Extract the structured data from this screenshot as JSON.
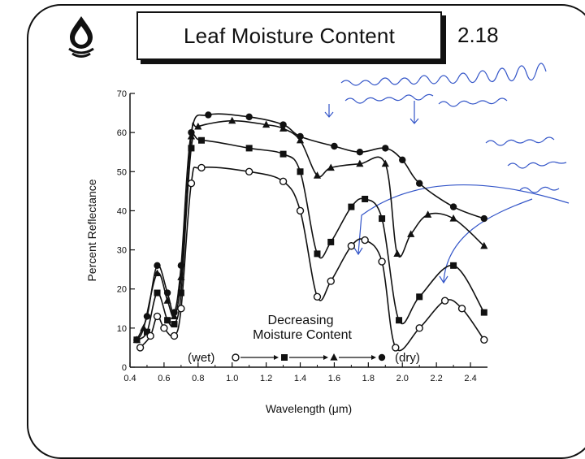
{
  "slide": {
    "title": "Leaf Moisture Content",
    "number": "2.18"
  },
  "colors": {
    "ink": "#111111",
    "handwriting": "#3355c8",
    "background": "#ffffff"
  },
  "icon": "water-drop-icon",
  "chart_data": {
    "type": "line",
    "title": "",
    "xlabel": "Wavelength (μm)",
    "ylabel": "Percent Reflectance",
    "xlim": [
      0.4,
      2.5
    ],
    "ylim": [
      0,
      70
    ],
    "x_ticks": [
      "0.4",
      "0.6",
      "0.8",
      "1.0",
      "1.2",
      "1.4",
      "1.6",
      "1.8",
      "2.0",
      "2.2",
      "2.4"
    ],
    "y_ticks": [
      "0",
      "10",
      "20",
      "30",
      "40",
      "50",
      "60",
      "70"
    ],
    "grid": false,
    "annotation": [
      "Decreasing",
      "Moisture Content"
    ],
    "legend": {
      "wet_label": "(wet)",
      "dry_label": "(dry)",
      "order": [
        "open-circle",
        "square",
        "triangle",
        "filled-circle"
      ]
    },
    "series": [
      {
        "marker": "filled-circle",
        "points": [
          [
            0.44,
            7
          ],
          [
            0.5,
            13
          ],
          [
            0.56,
            26
          ],
          [
            0.62,
            19
          ],
          [
            0.66,
            14
          ],
          [
            0.7,
            26
          ],
          [
            0.76,
            60
          ],
          [
            0.86,
            64.5
          ],
          [
            1.1,
            64
          ],
          [
            1.3,
            62
          ],
          [
            1.4,
            59
          ],
          [
            1.6,
            56.5
          ],
          [
            1.75,
            55
          ],
          [
            1.9,
            56
          ],
          [
            2.0,
            53
          ],
          [
            2.1,
            47
          ],
          [
            2.3,
            41
          ],
          [
            2.48,
            38
          ]
        ]
      },
      {
        "marker": "triangle",
        "points": [
          [
            0.44,
            7
          ],
          [
            0.48,
            10
          ],
          [
            0.56,
            24
          ],
          [
            0.62,
            17
          ],
          [
            0.66,
            13
          ],
          [
            0.7,
            23
          ],
          [
            0.76,
            59
          ],
          [
            0.8,
            61.5
          ],
          [
            1.0,
            63
          ],
          [
            1.2,
            62
          ],
          [
            1.3,
            61
          ],
          [
            1.4,
            58
          ],
          [
            1.5,
            49
          ],
          [
            1.58,
            51
          ],
          [
            1.75,
            52
          ],
          [
            1.9,
            52
          ],
          [
            1.97,
            29
          ],
          [
            2.05,
            34
          ],
          [
            2.15,
            39
          ],
          [
            2.3,
            38
          ],
          [
            2.48,
            31
          ]
        ]
      },
      {
        "marker": "square",
        "points": [
          [
            0.44,
            7
          ],
          [
            0.5,
            9
          ],
          [
            0.56,
            19
          ],
          [
            0.62,
            12
          ],
          [
            0.66,
            11
          ],
          [
            0.7,
            19
          ],
          [
            0.76,
            56
          ],
          [
            0.82,
            58
          ],
          [
            1.1,
            56
          ],
          [
            1.3,
            54.5
          ],
          [
            1.4,
            50
          ],
          [
            1.5,
            29
          ],
          [
            1.58,
            32
          ],
          [
            1.7,
            41
          ],
          [
            1.78,
            43
          ],
          [
            1.88,
            38
          ],
          [
            1.98,
            12
          ],
          [
            2.1,
            18
          ],
          [
            2.3,
            26
          ],
          [
            2.48,
            14
          ]
        ]
      },
      {
        "marker": "open-circle",
        "points": [
          [
            0.46,
            5
          ],
          [
            0.52,
            8
          ],
          [
            0.56,
            13
          ],
          [
            0.6,
            10
          ],
          [
            0.66,
            8
          ],
          [
            0.7,
            15
          ],
          [
            0.76,
            47
          ],
          [
            0.82,
            51
          ],
          [
            1.1,
            50
          ],
          [
            1.3,
            47.5
          ],
          [
            1.4,
            40
          ],
          [
            1.5,
            18
          ],
          [
            1.58,
            22
          ],
          [
            1.7,
            31
          ],
          [
            1.78,
            32.5
          ],
          [
            1.88,
            27
          ],
          [
            1.96,
            5
          ],
          [
            2.1,
            10
          ],
          [
            2.25,
            17
          ],
          [
            2.35,
            15
          ],
          [
            2.48,
            7
          ]
        ]
      }
    ]
  }
}
